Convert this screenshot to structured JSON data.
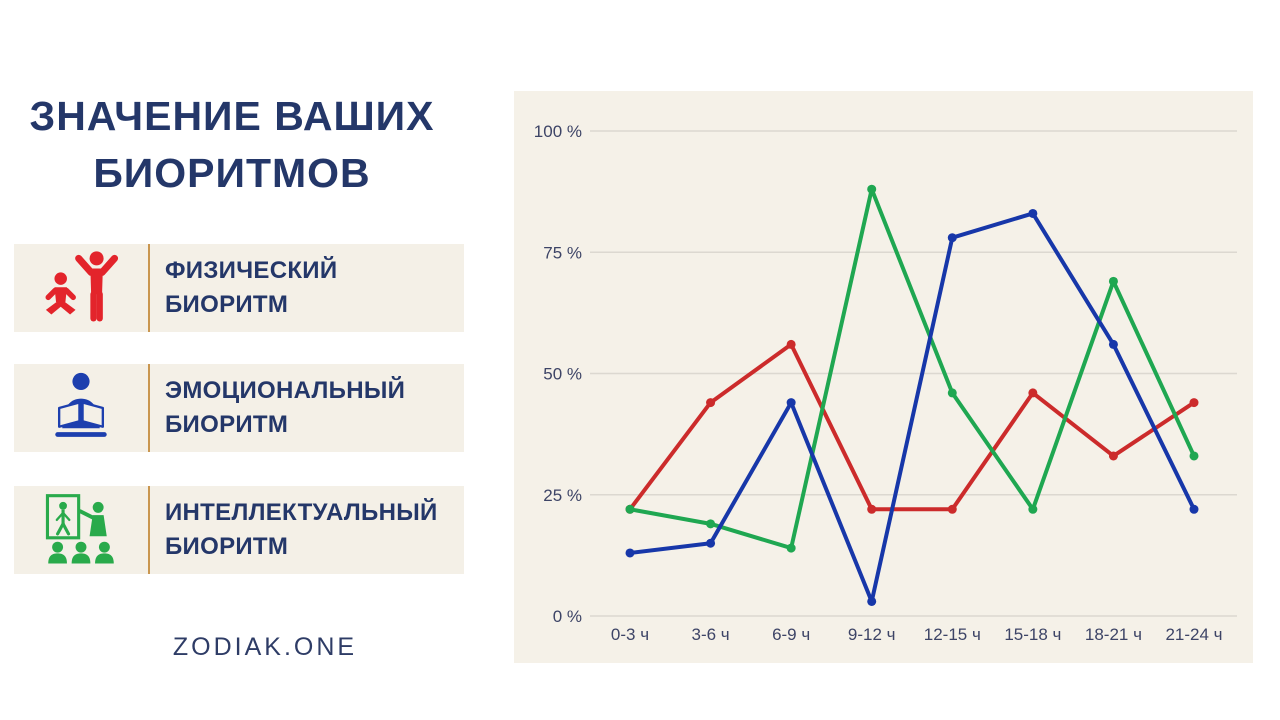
{
  "page": {
    "title_line1": "ЗНАЧЕНИЕ ВАШИХ",
    "title_line2": "БИОРИТМОВ",
    "footer": "ZODIAK.ONE"
  },
  "legend": {
    "items": [
      {
        "label_line1": "ФИЗИЧЕСКИЙ",
        "label_line2": "БИОРИТМ",
        "icon": "physical-biorhythm-icon",
        "color": "#e3242b"
      },
      {
        "label_line1": "ЭМОЦИОНАЛЬНЫЙ",
        "label_line2": "БИОРИТМ",
        "icon": "emotional-biorhythm-icon",
        "color": "#1d3fae"
      },
      {
        "label_line1": "ИНТЕЛЛЕКТУАЛЬНЫЙ",
        "label_line2": "БИОРИТМ",
        "icon": "intellectual-biorhythm-icon",
        "color": "#29aa4b"
      }
    ]
  },
  "colors": {
    "title_text": "#243769",
    "tick_text": "#3d4466",
    "grid_line": "#dcd8d0",
    "chart_background": "#f5f1e8",
    "card_background": "#f4f0e7",
    "card_divider": "#c9964f"
  },
  "chart_data": {
    "type": "line",
    "title": "",
    "xlabel": "",
    "ylabel": "",
    "categories": [
      "0-3 ч",
      "3-6 ч",
      "6-9 ч",
      "9-12 ч",
      "12-15 ч",
      "15-18 ч",
      "18-21 ч",
      "21-24 ч"
    ],
    "series": [
      {
        "key": "physical",
        "name": "Физический биоритм",
        "color": "#cc2b2b",
        "values": [
          22,
          44,
          56,
          22,
          22,
          46,
          33,
          44
        ]
      },
      {
        "key": "intellectual",
        "name": "Интеллектуальный биоритм",
        "color": "#1fa751",
        "values": [
          22,
          19,
          14,
          88,
          46,
          22,
          69,
          33
        ]
      },
      {
        "key": "emotional",
        "name": "Эмоциональный биоритм",
        "color": "#1737a9",
        "values": [
          13,
          15,
          44,
          3,
          78,
          83,
          56,
          22
        ]
      }
    ],
    "ylim": [
      0,
      100
    ],
    "yticks": [
      {
        "value": 0,
        "label": "0 %"
      },
      {
        "value": 25,
        "label": "25 %"
      },
      {
        "value": 50,
        "label": "50 %"
      },
      {
        "value": 75,
        "label": "75 %"
      },
      {
        "value": 100,
        "label": "100 %"
      }
    ],
    "grid": true,
    "legend_position": "left-panel"
  }
}
